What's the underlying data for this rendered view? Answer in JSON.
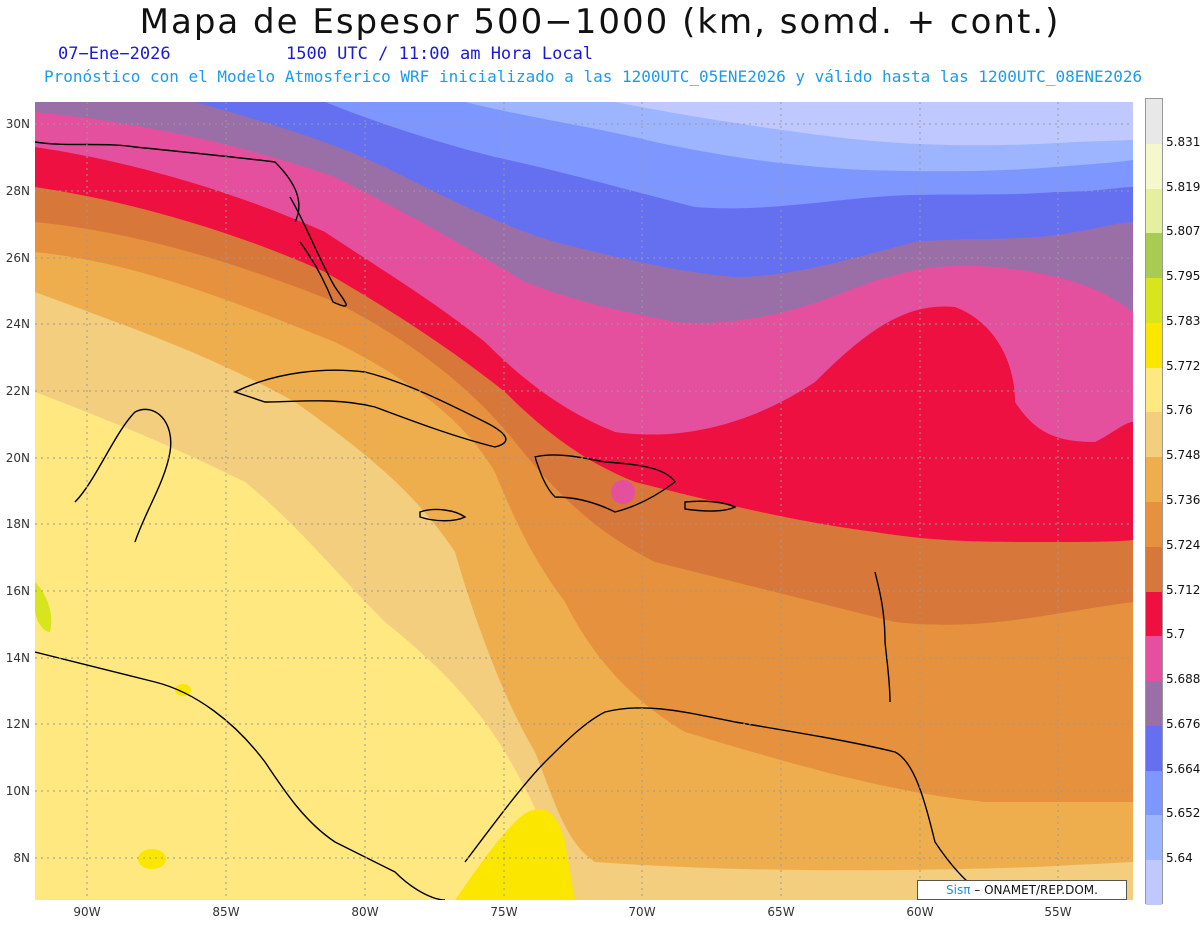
{
  "header": {
    "title": "Mapa de Espesor 500−1000 (km, somd. + cont.)",
    "date": "07−Ene−2026",
    "time": "1500 UTC / 11:00 am Hora Local",
    "init": "Pronóstico con el Modelo Atmosferico WRF inicializado a las 1200UTC_05ENE2026 y válido hasta las  1200UTC_08ENE2026"
  },
  "axes": {
    "lat": [
      "30N",
      "28N",
      "26N",
      "24N",
      "22N",
      "20N",
      "18N",
      "16N",
      "14N",
      "12N",
      "10N",
      "8N"
    ],
    "lon": [
      "90W",
      "85W",
      "80W",
      "75W",
      "70W",
      "65W",
      "60W",
      "55W"
    ]
  },
  "colorbar": {
    "labels": [
      "5.831",
      "5.819",
      "5.807",
      "5.795",
      "5.783",
      "5.772",
      "5.76",
      "5.748",
      "5.736",
      "5.724",
      "5.712",
      "5.7",
      "5.688",
      "5.676",
      "5.664",
      "5.652",
      "5.64"
    ],
    "colors": [
      "#bfc8ff",
      "#9db4ff",
      "#7e96ff",
      "#6470f0",
      "#9a6fa8",
      "#e4509e",
      "#ee1040",
      "#d8773a",
      "#e6913e",
      "#efae4e",
      "#f2ce7e",
      "#ffe880",
      "#fbe600",
      "#d8e41e",
      "#a8cc52",
      "#e4f0a0",
      "#f4f8cc",
      "#e8e8e8"
    ]
  },
  "credit": {
    "brand": "Sisπ",
    "text": " – ONAMET/REP.DOM."
  }
}
